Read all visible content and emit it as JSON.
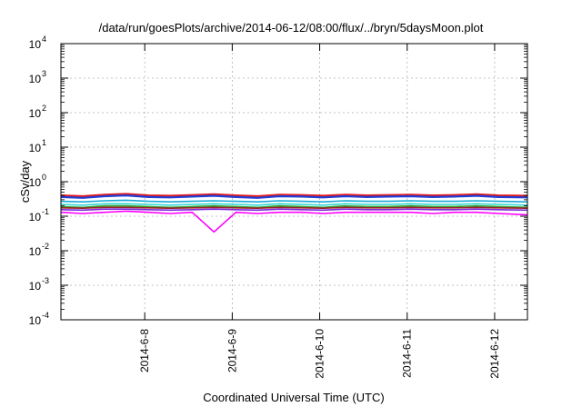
{
  "chart_data": {
    "type": "line",
    "title": "/data/run/goesPlots/archive/2014-06-12/08:00/flux/../bryn/5daysMoon.plot",
    "xlabel": "Coordinated Universal Time (UTC)",
    "ylabel": "cSv/day",
    "yscale": "log",
    "ylim": [
      0.0001,
      10000
    ],
    "y_ticks": [
      {
        "base": "10",
        "exp": "-4",
        "value": 0.0001
      },
      {
        "base": "10",
        "exp": "-3",
        "value": 0.001
      },
      {
        "base": "10",
        "exp": "-2",
        "value": 0.01
      },
      {
        "base": "10",
        "exp": "-1",
        "value": 0.1
      },
      {
        "base": "10",
        "exp": "0",
        "value": 1
      },
      {
        "base": "10",
        "exp": "1",
        "value": 10
      },
      {
        "base": "10",
        "exp": "2",
        "value": 100
      },
      {
        "base": "10",
        "exp": "3",
        "value": 1000
      },
      {
        "base": "10",
        "exp": "4",
        "value": 10000
      }
    ],
    "xlim": [
      "2014-06-07T01:00",
      "2014-06-12T09:00"
    ],
    "x_ticks": [
      {
        "label": "2014-6-8",
        "date": "2014-06-08"
      },
      {
        "label": "2014-6-9",
        "date": "2014-06-09"
      },
      {
        "label": "2014-6-10",
        "date": "2014-06-10"
      },
      {
        "label": "2014-6-11",
        "date": "2014-06-11"
      },
      {
        "label": "2014-6-12",
        "date": "2014-06-12"
      }
    ],
    "grid": true,
    "x": [
      "2014-06-07T01:00",
      "2014-06-07T07:00",
      "2014-06-07T13:00",
      "2014-06-07T19:00",
      "2014-06-08T01:00",
      "2014-06-08T07:00",
      "2014-06-08T13:00",
      "2014-06-08T19:00",
      "2014-06-09T01:00",
      "2014-06-09T07:00",
      "2014-06-09T13:00",
      "2014-06-09T19:00",
      "2014-06-10T01:00",
      "2014-06-10T07:00",
      "2014-06-10T13:00",
      "2014-06-10T19:00",
      "2014-06-11T01:00",
      "2014-06-11T07:00",
      "2014-06-11T13:00",
      "2014-06-11T19:00",
      "2014-06-12T01:00",
      "2014-06-12T09:00"
    ],
    "series": [
      {
        "color": "#e41a1c",
        "values": [
          0.4,
          0.38,
          0.42,
          0.44,
          0.4,
          0.39,
          0.41,
          0.43,
          0.4,
          0.38,
          0.42,
          0.41,
          0.39,
          0.42,
          0.4,
          0.41,
          0.42,
          0.4,
          0.41,
          0.43,
          0.4,
          0.39
        ]
      },
      {
        "color": "#1f3fd8",
        "values": [
          0.36,
          0.34,
          0.38,
          0.4,
          0.36,
          0.35,
          0.37,
          0.39,
          0.36,
          0.34,
          0.38,
          0.37,
          0.35,
          0.38,
          0.36,
          0.37,
          0.38,
          0.36,
          0.37,
          0.39,
          0.36,
          0.35
        ]
      },
      {
        "color": "#18a7d8",
        "values": [
          0.27,
          0.26,
          0.28,
          0.29,
          0.27,
          0.26,
          0.27,
          0.28,
          0.27,
          0.26,
          0.28,
          0.27,
          0.26,
          0.28,
          0.27,
          0.27,
          0.28,
          0.27,
          0.27,
          0.28,
          0.27,
          0.26
        ]
      },
      {
        "color": "#30d8d0",
        "values": [
          0.22,
          0.21,
          0.23,
          0.23,
          0.22,
          0.21,
          0.22,
          0.23,
          0.22,
          0.21,
          0.23,
          0.22,
          0.21,
          0.23,
          0.22,
          0.22,
          0.23,
          0.22,
          0.22,
          0.23,
          0.22,
          0.21
        ]
      },
      {
        "color": "#2ca02c",
        "values": [
          0.19,
          0.18,
          0.2,
          0.2,
          0.19,
          0.18,
          0.19,
          0.2,
          0.19,
          0.18,
          0.2,
          0.19,
          0.18,
          0.2,
          0.19,
          0.19,
          0.2,
          0.19,
          0.19,
          0.2,
          0.19,
          0.18
        ]
      },
      {
        "color": "#9a1e2a",
        "values": [
          0.175,
          0.17,
          0.18,
          0.18,
          0.175,
          0.17,
          0.175,
          0.18,
          0.175,
          0.17,
          0.18,
          0.175,
          0.17,
          0.18,
          0.175,
          0.175,
          0.18,
          0.175,
          0.175,
          0.18,
          0.175,
          0.17
        ]
      },
      {
        "color": "#7b2bd8",
        "values": [
          0.155,
          0.15,
          0.16,
          0.16,
          0.155,
          0.15,
          0.155,
          0.16,
          0.155,
          0.15,
          0.16,
          0.155,
          0.15,
          0.16,
          0.155,
          0.155,
          0.16,
          0.155,
          0.155,
          0.16,
          0.155,
          0.15
        ]
      },
      {
        "color": "#ff00ff",
        "values": [
          0.13,
          0.12,
          0.13,
          0.14,
          0.13,
          0.12,
          0.13,
          0.035,
          0.13,
          0.12,
          0.13,
          0.13,
          0.12,
          0.13,
          0.13,
          0.13,
          0.13,
          0.12,
          0.13,
          0.13,
          0.12,
          0.11
        ]
      }
    ]
  }
}
